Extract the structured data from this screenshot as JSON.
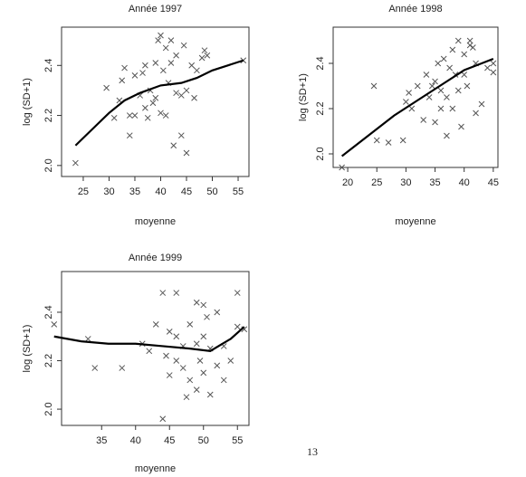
{
  "chart_data": [
    {
      "type": "scatter",
      "title": "Année 1997",
      "xlabel": "moyenne",
      "ylabel": "log (SD+1)",
      "xlim": [
        20.8,
        57.1
      ],
      "ylim": [
        1.956,
        2.553
      ],
      "xticks": [
        25,
        30,
        35,
        40,
        45,
        50,
        55
      ],
      "yticks": [
        {
          "value": 2,
          "label": "2.0"
        },
        2.2,
        2.4
      ],
      "series": [
        {
          "type": "scatter",
          "marker": "x",
          "color": "#555555",
          "x": [
            23.5,
            29.5,
            31,
            32,
            32.5,
            33,
            34,
            34,
            35,
            35,
            36,
            36.5,
            37,
            37,
            37.5,
            38,
            38.5,
            39,
            39,
            39.5,
            40,
            40,
            40.5,
            41,
            41,
            41.5,
            42,
            42,
            42.5,
            43,
            43,
            44,
            44,
            44.5,
            45,
            45,
            46,
            46.5,
            47,
            48,
            48.5,
            49,
            56
          ],
          "values": [
            2.01,
            2.31,
            2.19,
            2.26,
            2.34,
            2.39,
            2.12,
            2.2,
            2.36,
            2.2,
            2.28,
            2.37,
            2.4,
            2.23,
            2.19,
            2.3,
            2.25,
            2.41,
            2.27,
            2.5,
            2.52,
            2.21,
            2.38,
            2.47,
            2.2,
            2.33,
            2.5,
            2.41,
            2.08,
            2.29,
            2.44,
            2.12,
            2.28,
            2.48,
            2.05,
            2.3,
            2.4,
            2.27,
            2.38,
            2.43,
            2.46,
            2.44,
            2.42
          ]
        },
        {
          "type": "line",
          "color": "#000000",
          "x": [
            23.5,
            27,
            30,
            33,
            36,
            40,
            44,
            47,
            50,
            53,
            56
          ],
          "values": [
            2.08,
            2.15,
            2.21,
            2.26,
            2.29,
            2.32,
            2.33,
            2.35,
            2.38,
            2.4,
            2.42
          ]
        }
      ]
    },
    {
      "type": "scatter",
      "title": "Année 1998",
      "xlabel": "moyenne",
      "ylabel": "log (SD+1)",
      "xlim": [
        17.5,
        45.8
      ],
      "ylim": [
        1.94,
        2.56
      ],
      "xticks": [
        20,
        25,
        30,
        35,
        40,
        45
      ],
      "yticks": [
        {
          "value": 2,
          "label": "2.0"
        },
        2.2,
        2.4
      ],
      "series": [
        {
          "type": "scatter",
          "marker": "x",
          "color": "#555555",
          "x": [
            19,
            24.5,
            25,
            27,
            29.5,
            30,
            30.5,
            31,
            32,
            33,
            33.5,
            34,
            34.5,
            35,
            35,
            35.5,
            36,
            36,
            36.5,
            37,
            37,
            37.5,
            38,
            38,
            38.5,
            39,
            39,
            39.5,
            40,
            40,
            40.5,
            41,
            41,
            41.5,
            42,
            42,
            43,
            44,
            45,
            45
          ],
          "values": [
            1.94,
            2.3,
            2.06,
            2.05,
            2.06,
            2.23,
            2.27,
            2.2,
            2.3,
            2.15,
            2.35,
            2.25,
            2.3,
            2.32,
            2.14,
            2.4,
            2.2,
            2.28,
            2.42,
            2.08,
            2.25,
            2.38,
            2.46,
            2.2,
            2.35,
            2.5,
            2.28,
            2.12,
            2.44,
            2.35,
            2.3,
            2.48,
            2.5,
            2.47,
            2.18,
            2.4,
            2.22,
            2.38,
            2.36,
            2.4
          ]
        },
        {
          "type": "line",
          "color": "#000000",
          "x": [
            19,
            22,
            25,
            28,
            31,
            34,
            37,
            40,
            43,
            45
          ],
          "values": [
            1.99,
            2.05,
            2.11,
            2.17,
            2.22,
            2.27,
            2.32,
            2.37,
            2.4,
            2.42
          ]
        }
      ]
    },
    {
      "type": "scatter",
      "title": "Année 1999",
      "xlabel": "moyenne",
      "ylabel": "log (SD+1)",
      "xlim": [
        29.1,
        56.7
      ],
      "ylim": [
        1.933,
        2.568
      ],
      "xticks": [
        35,
        40,
        45,
        50,
        55
      ],
      "yticks": [
        {
          "value": 2,
          "label": "2.0"
        },
        2.2,
        2.4
      ],
      "series": [
        {
          "type": "scatter",
          "marker": "x",
          "color": "#555555",
          "x": [
            28,
            33,
            34,
            38,
            41,
            42,
            43,
            44,
            44,
            44.5,
            45,
            45,
            46,
            46,
            46,
            47,
            47,
            47.5,
            48,
            48,
            49,
            49,
            49,
            49.5,
            50,
            50,
            50,
            50.5,
            51,
            51,
            52,
            52,
            53,
            53,
            54,
            55,
            55,
            56
          ],
          "values": [
            2.35,
            2.29,
            2.17,
            2.17,
            2.27,
            2.24,
            2.35,
            2.48,
            1.96,
            2.22,
            2.32,
            2.14,
            2.48,
            2.3,
            2.2,
            2.26,
            2.17,
            2.05,
            2.35,
            2.12,
            2.44,
            2.27,
            2.08,
            2.2,
            2.43,
            2.3,
            2.15,
            2.38,
            2.25,
            2.06,
            2.4,
            2.18,
            2.26,
            2.12,
            2.2,
            2.48,
            2.34,
            2.33
          ]
        },
        {
          "type": "line",
          "color": "#000000",
          "x": [
            28,
            32,
            36,
            40,
            44,
            48,
            51,
            54,
            56
          ],
          "values": [
            2.3,
            2.28,
            2.27,
            2.27,
            2.26,
            2.25,
            2.24,
            2.29,
            2.34
          ]
        }
      ]
    }
  ],
  "page_number": "13"
}
